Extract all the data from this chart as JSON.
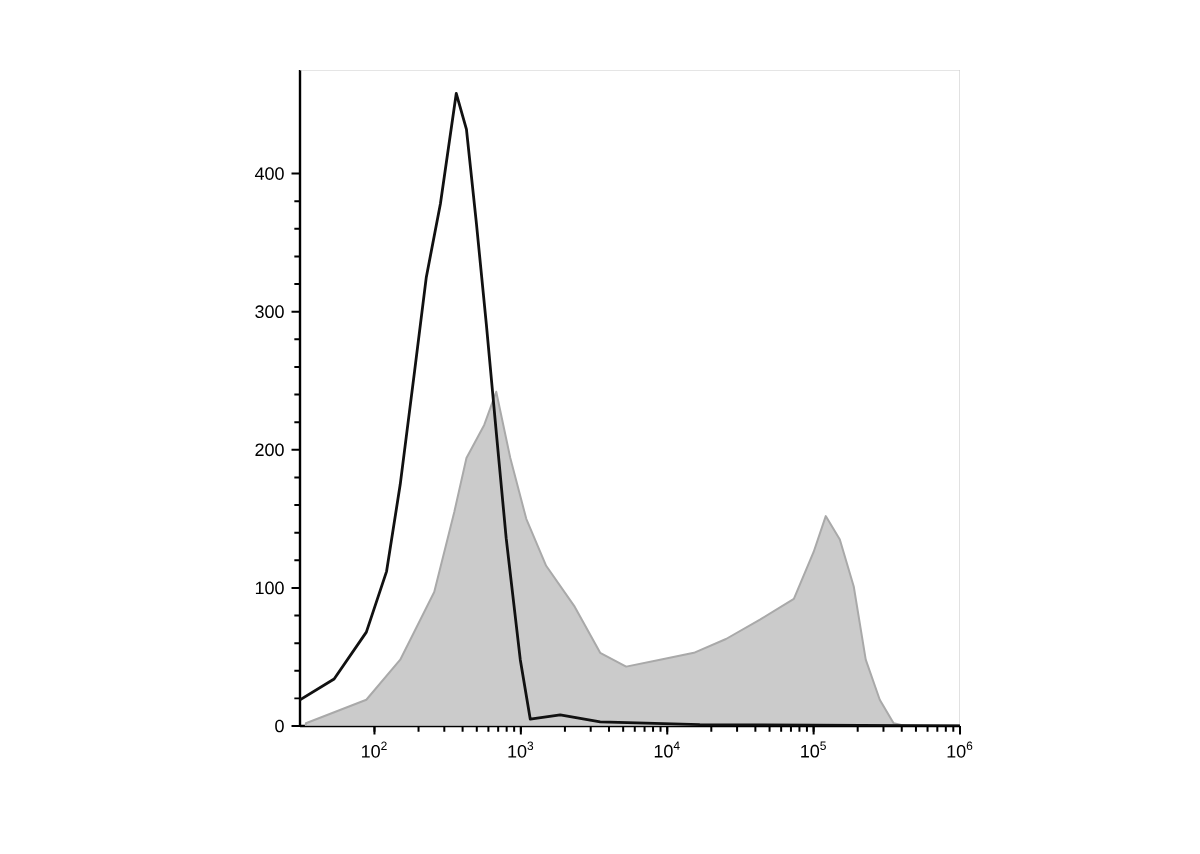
{
  "chart_data": {
    "type": "area",
    "log": "x",
    "xlim": [
      31,
      1000000
    ],
    "ylim": [
      0,
      475
    ],
    "xticks": [
      {
        "value": 100,
        "label": "10$^{2}$"
      },
      {
        "value": 1000,
        "label": "10$^{3}$"
      },
      {
        "value": 10000,
        "label": "10$^{4}$"
      },
      {
        "value": 100000,
        "label": "10$^{5}$"
      },
      {
        "value": 1000000,
        "label": "10$^{6}$"
      }
    ],
    "yticks": [
      0,
      100,
      200,
      300,
      400
    ],
    "grid": false,
    "series": [
      {
        "color": "#a9a9a9",
        "x": [
          34,
          88,
          150,
          256,
          351,
          425,
          562,
          679,
          847,
          1089,
          1489,
          2312,
          3483,
          5240,
          8930,
          15200,
          25200,
          43000,
          73300,
          100000,
          121000,
          151000,
          188000,
          227000,
          283000,
          352000,
          426000,
          1000000
        ],
        "values": [
          2,
          19,
          48,
          97,
          155,
          194,
          218,
          242,
          194,
          150,
          116,
          87,
          53,
          43,
          48,
          53,
          63,
          77,
          92,
          126,
          152,
          135,
          101,
          48,
          19,
          2,
          0,
          0
        ]
      },
      {
        "type": "line",
        "color": "#111111",
        "x": [
          31,
          53,
          88,
          121,
          150,
          188,
          226,
          282,
          362,
          425,
          497,
          581,
          679,
          794,
          991,
          1159,
          1857,
          3483,
          16700,
          1000000
        ],
        "values": [
          19,
          34,
          68,
          112,
          175,
          257,
          325,
          378,
          458,
          432,
          364,
          291,
          213,
          136,
          48,
          5,
          8,
          3,
          1,
          0
        ]
      }
    ]
  }
}
